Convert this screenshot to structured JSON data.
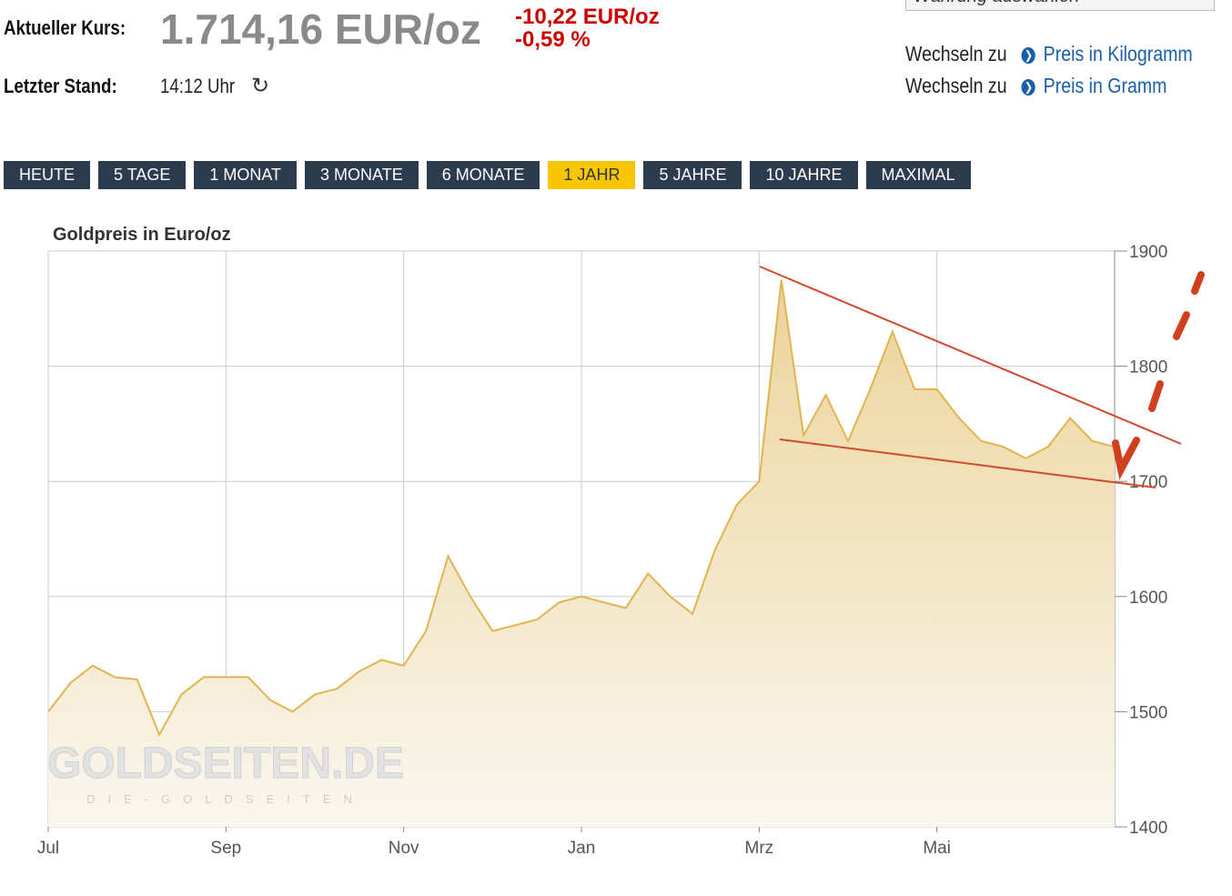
{
  "header": {
    "current_label": "Aktueller Kurs:",
    "price": "1.714,16 EUR/oz",
    "change_abs": "-10,22 EUR/oz",
    "change_pct": "-0,59 %",
    "last_label": "Letzter Stand:",
    "time": "14:12 Uhr",
    "currency_select": "Währung auswählen",
    "switch_label": "Wechseln zu",
    "link_kg": "Preis in Kilogramm",
    "link_g": "Preis in Gramm"
  },
  "buttons": [
    "HEUTE",
    "5 TAGE",
    "1 MONAT",
    "3 MONATE",
    "6 MONATE",
    "1 JAHR",
    "5 JAHRE",
    "10 JAHRE",
    "MAXIMAL"
  ],
  "watermark": {
    "brand": "GOLDSEITEN.DE",
    "tagline": "DIE-GOLDSEITEN"
  },
  "chart_data": {
    "type": "area",
    "title": "Goldpreis in Euro/oz",
    "color": "#e0b550",
    "categories": [
      "Jul",
      null,
      null,
      null,
      null,
      null,
      null,
      null,
      "Sep",
      null,
      null,
      null,
      null,
      null,
      null,
      null,
      "Nov",
      null,
      null,
      null,
      null,
      null,
      null,
      null,
      "Jan",
      null,
      null,
      null,
      null,
      null,
      null,
      null,
      "Mrz",
      null,
      null,
      null,
      null,
      null,
      null,
      null,
      "Mai",
      null,
      null,
      null,
      null,
      null,
      null,
      null,
      null
    ],
    "values": [
      1500,
      1525,
      1540,
      1530,
      1528,
      1480,
      1515,
      1530,
      1530,
      1530,
      1510,
      1500,
      1515,
      1520,
      1535,
      1545,
      1540,
      1570,
      1635,
      1600,
      1570,
      1575,
      1580,
      1595,
      1600,
      1595,
      1590,
      1620,
      1600,
      1585,
      1640,
      1680,
      1700,
      1875,
      1740,
      1775,
      1735,
      1780,
      1830,
      1780,
      1780,
      1755,
      1735,
      1730,
      1720,
      1730,
      1755,
      1735,
      1730
    ],
    "ylim": [
      1400,
      1900
    ],
    "yticks": [
      1400,
      1500,
      1600,
      1700,
      1800,
      1900
    ],
    "grid": true,
    "y_axis_side": "right"
  }
}
